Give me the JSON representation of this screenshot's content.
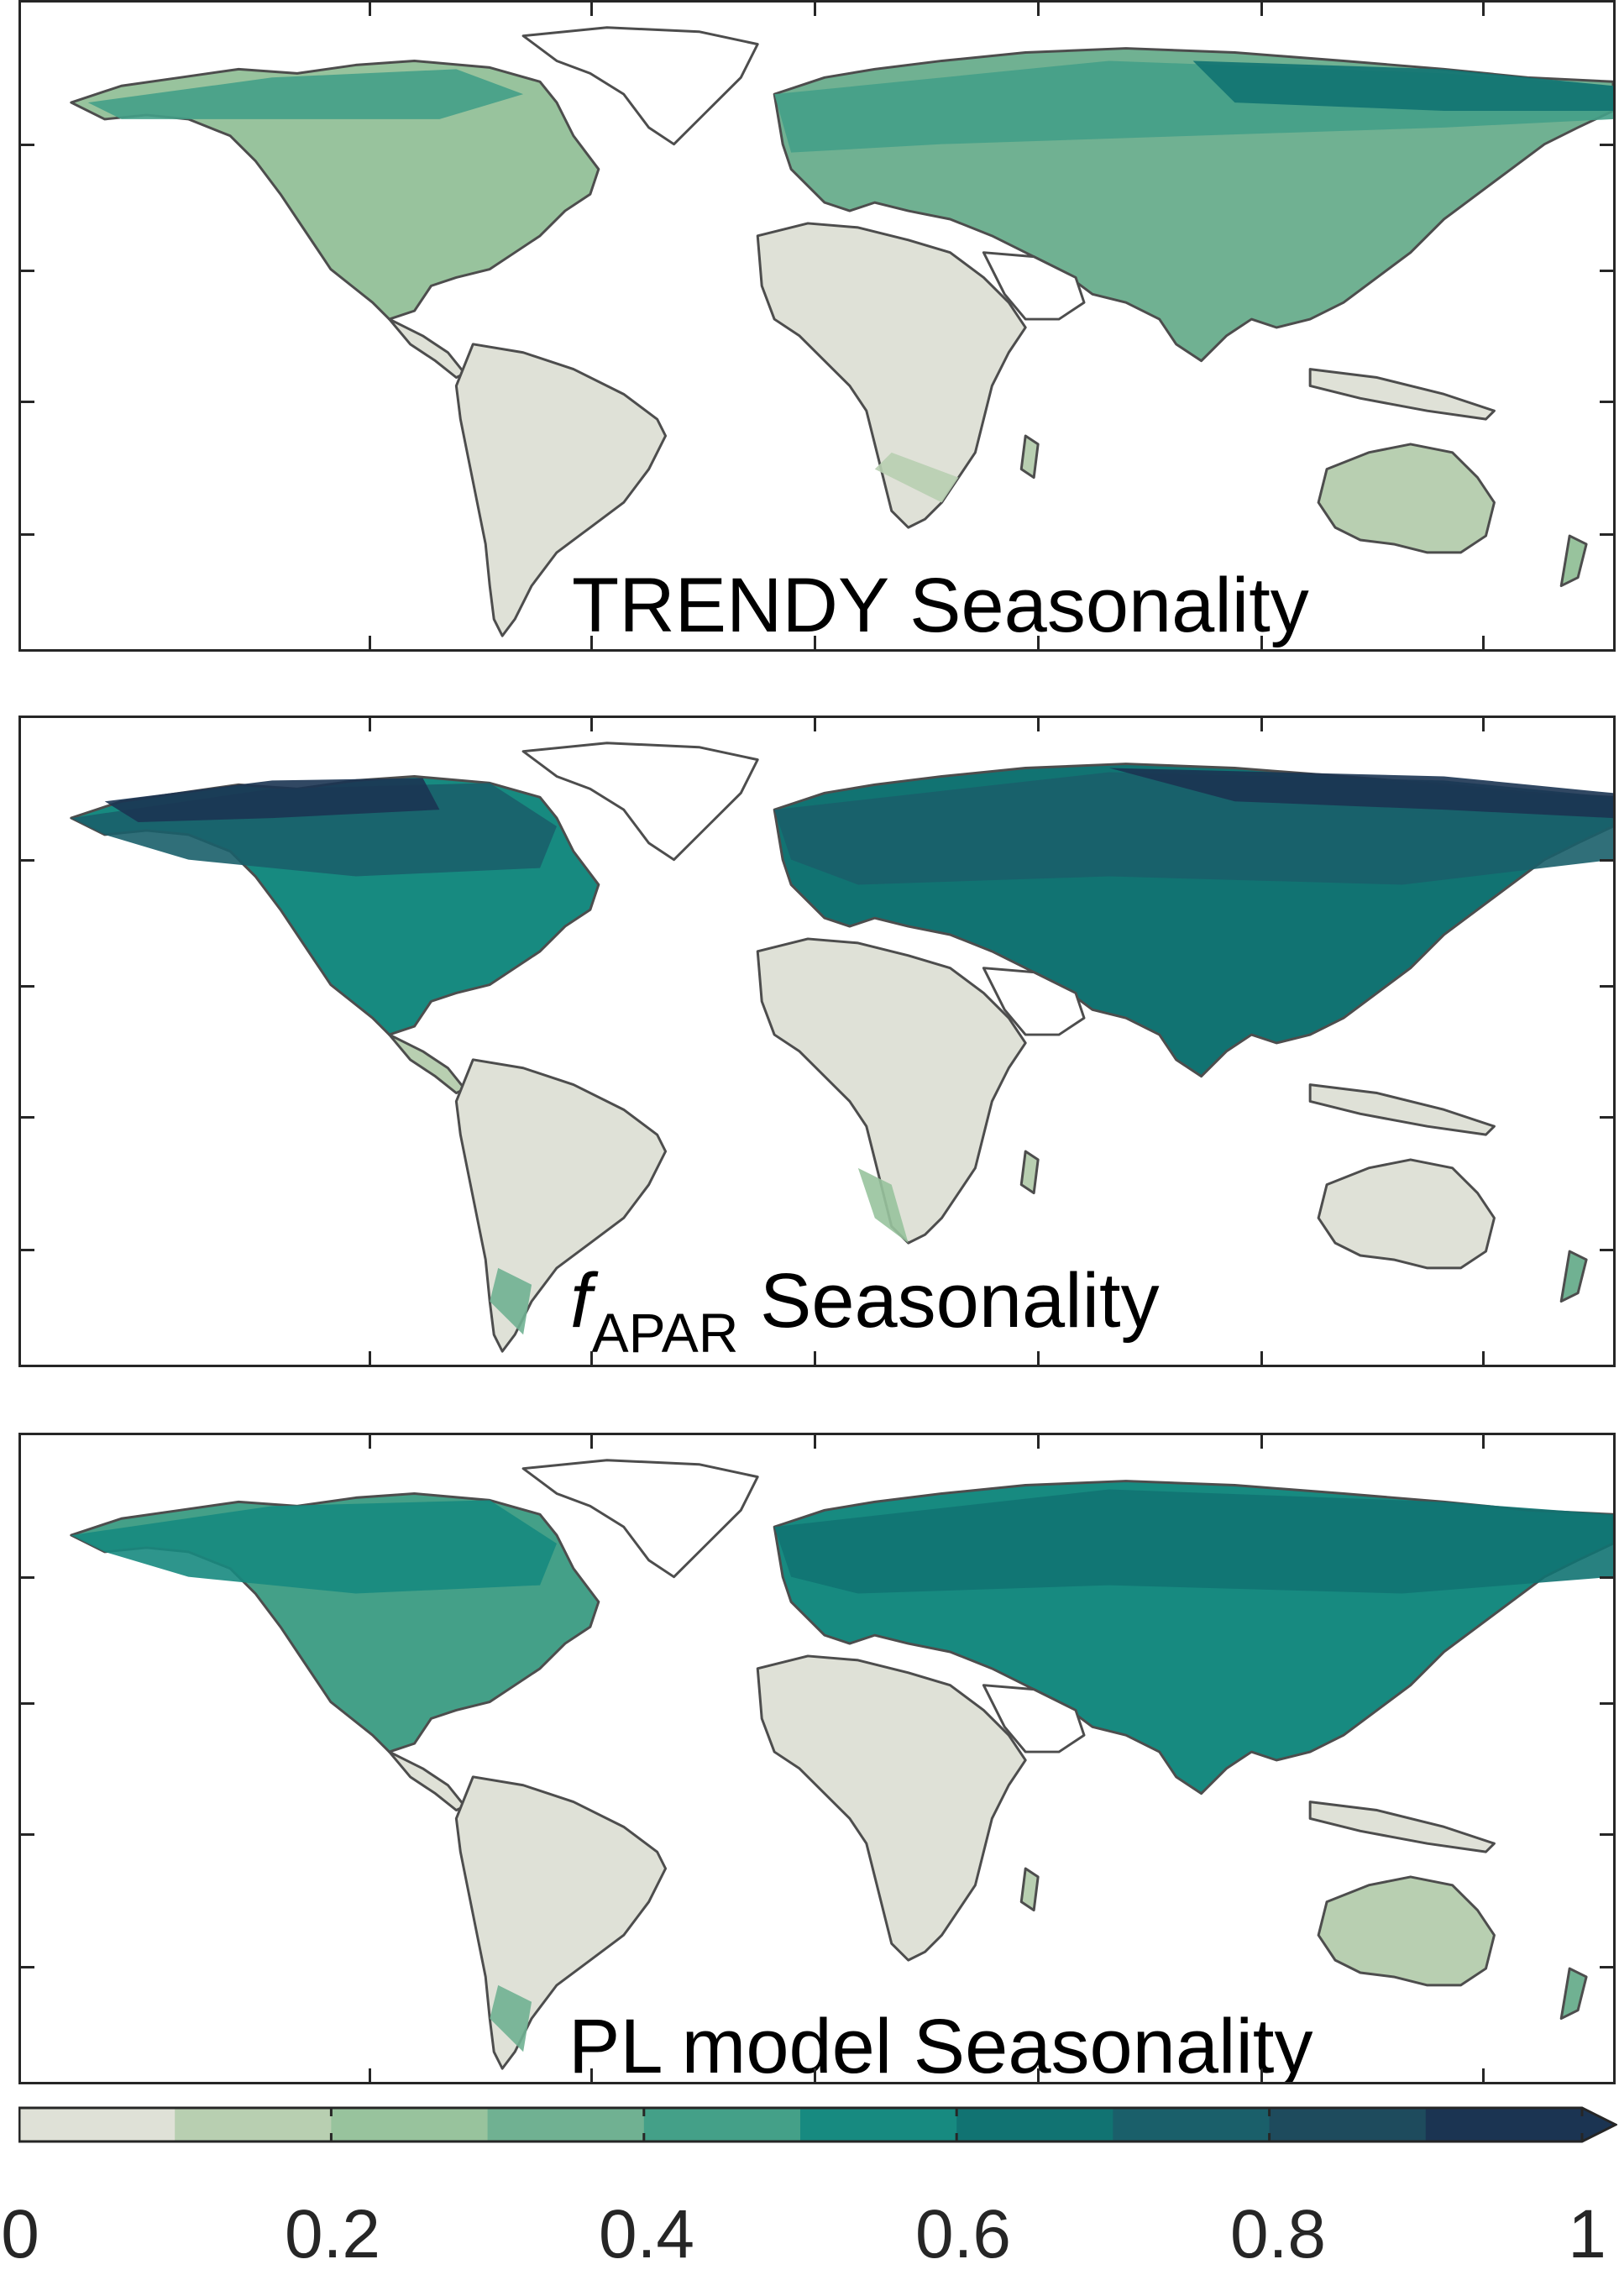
{
  "panels": [
    {
      "title": "TRENDY Seasonality"
    },
    {
      "title_symbol": "f",
      "title_subscript": "APAR",
      "title_rest": " Seasonality"
    },
    {
      "title": "PL model Seasonality"
    }
  ],
  "colorbar": {
    "ticks": [
      "0",
      "0.2",
      "0.4",
      "0.6",
      "0.8",
      "1"
    ],
    "colors": [
      "#dfe1d7",
      "#b8cfb1",
      "#98c39d",
      "#70b192",
      "#44a088",
      "#178a80",
      "#117372",
      "#1a5f6a",
      "#1e4b5d",
      "#1b3452"
    ],
    "min": 0,
    "max": 1,
    "extend": "max"
  },
  "coastline_color": "#4d4d4d",
  "axis_color": "#262626",
  "background_color": "#ffffff"
}
